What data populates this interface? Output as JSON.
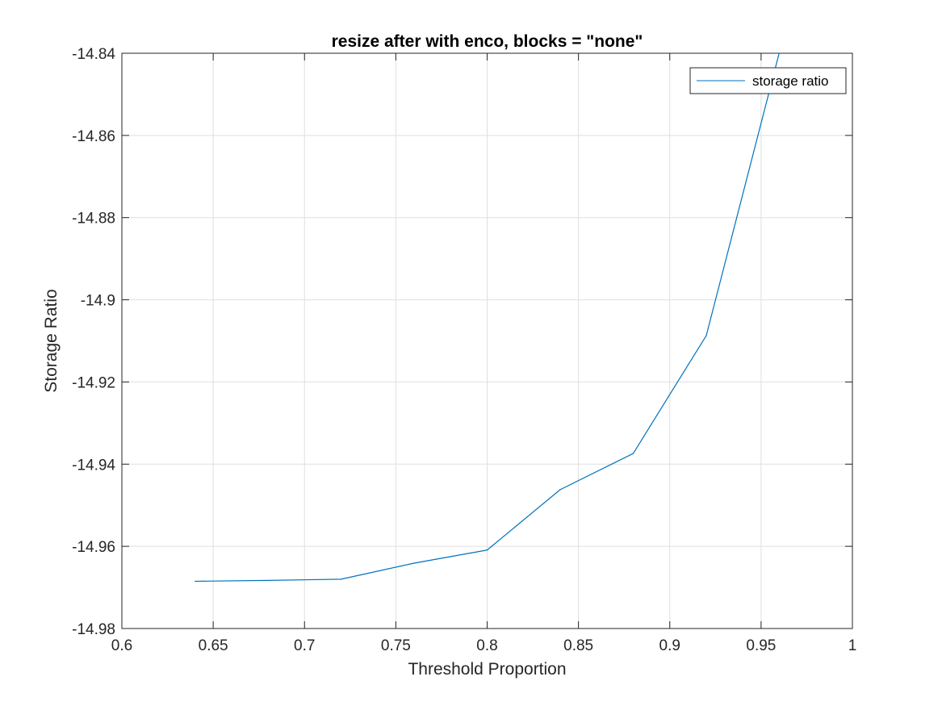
{
  "chart_data": {
    "type": "line",
    "title": "resize after with enco, blocks = \"none\"",
    "xlabel": "Threshold Proportion",
    "ylabel": "Storage Ratio",
    "xlim": [
      0.6,
      1.0
    ],
    "ylim": [
      -14.98,
      -14.84
    ],
    "xticks": [
      0.6,
      0.65,
      0.7,
      0.75,
      0.8,
      0.85,
      0.9,
      0.95,
      1.0
    ],
    "xtick_labels": [
      "0.6",
      "0.65",
      "0.7",
      "0.75",
      "0.8",
      "0.85",
      "0.9",
      "0.95",
      "1"
    ],
    "yticks": [
      -14.98,
      -14.96,
      -14.94,
      -14.92,
      -14.9,
      -14.88,
      -14.86,
      -14.84
    ],
    "ytick_labels": [
      "-14.98",
      "-14.96",
      "-14.94",
      "-14.92",
      "-14.9",
      "-14.88",
      "-14.86",
      "-14.84"
    ],
    "grid": true,
    "legend_position": "top-right",
    "series": [
      {
        "name": "storage ratio",
        "color": "#0072bd",
        "x": [
          0.64,
          0.68,
          0.72,
          0.76,
          0.8,
          0.84,
          0.88,
          0.92,
          0.96
        ],
        "y": [
          -14.9685,
          -14.9683,
          -14.968,
          -14.9641,
          -14.9609,
          -14.9462,
          -14.9374,
          -14.9087,
          -14.8398
        ]
      }
    ]
  }
}
